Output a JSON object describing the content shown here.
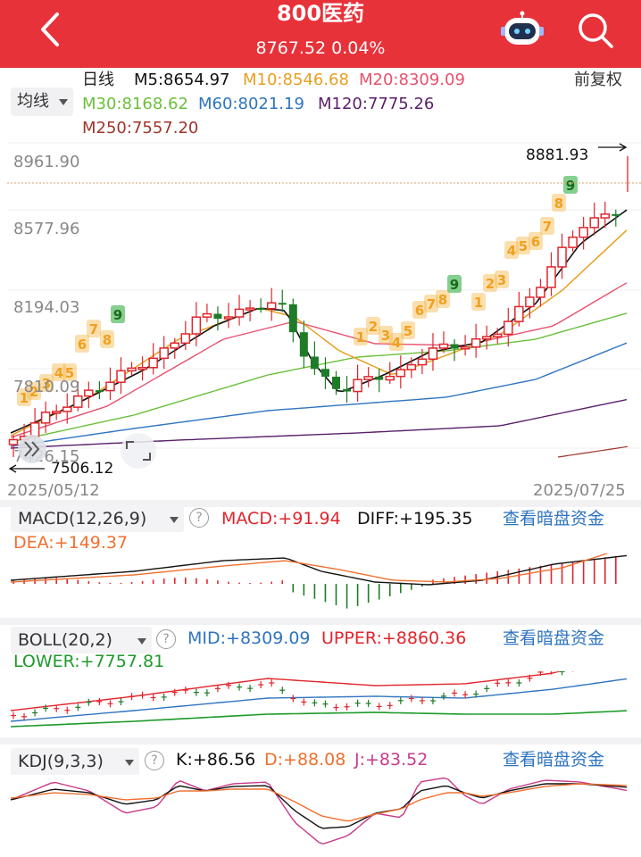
{
  "header": {
    "title": "800医药",
    "price_change": "8767.52 0.04%"
  },
  "ma_row": {
    "period": "日线",
    "m5": "M5:8654.97",
    "m10": "M10:8546.68",
    "m20": "M20:8309.09",
    "m30": "M30:8168.62",
    "m60": "M60:8021.19",
    "m120": "M120:7775.26",
    "m250": "M250:7557.20",
    "adjust": "前复权",
    "indicator_select": "均线"
  },
  "kline": {
    "y_labels": [
      "8961.90",
      "8577.96",
      "8194.03",
      "7810.09",
      "7426.15"
    ],
    "high_label": "8881.93",
    "low_label": "7506.12",
    "date_start": "2025/05/12",
    "date_end": "2025/07/25",
    "td_counts": [
      "1",
      "2",
      "3",
      "4",
      "5",
      "6",
      "7",
      "8",
      "9",
      "1",
      "2",
      "3",
      "4",
      "5",
      "6",
      "7",
      "8",
      "9",
      "1",
      "2",
      "3",
      "4",
      "5",
      "6",
      "7",
      "8",
      "9"
    ]
  },
  "macd": {
    "select": "MACD(12,26,9)",
    "macd": "MACD:+91.94",
    "diff": "DIFF:+195.35",
    "dea": "DEA:+149.37",
    "link": "查看暗盘资金"
  },
  "boll": {
    "select": "BOLL(20,2)",
    "mid": "MID:+8309.09",
    "upper": "UPPER:+8860.36",
    "lower": "LOWER:+7757.81",
    "link": "查看暗盘资金"
  },
  "kdj": {
    "select": "KDJ(9,3,3)",
    "k": "K:+86.56",
    "d": "D:+88.08",
    "j": "J:+83.52",
    "link": "查看暗盘资金"
  },
  "colors": {
    "up": "#e0252c",
    "down": "#1e7b27",
    "m5": "#111111",
    "m10": "#e6a020",
    "m20": "#e8506e",
    "m30": "#6bbf3a",
    "m60": "#2f74c0",
    "m120": "#5a1f6a",
    "m250": "#a0342a",
    "td": "#f5b94a",
    "td9": "#5cbf6a"
  },
  "icons": [
    "back-arrow-icon",
    "robot-assistant-icon",
    "search-icon",
    "dropdown-triangle-icon",
    "help-icon",
    "collapse-icon",
    "arrow-left-icon",
    "arrow-right-icon"
  ]
}
